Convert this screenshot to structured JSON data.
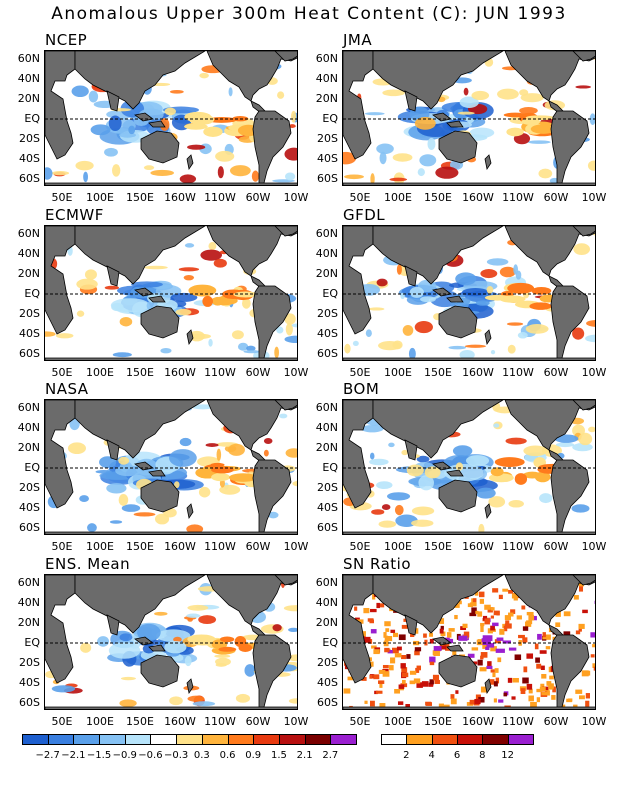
{
  "title": "Anomalous Upper 300m Heat Content (C): JUN 1993",
  "lat_labels": [
    "60N",
    "40N",
    "20N",
    "EQ",
    "20S",
    "40S",
    "60S"
  ],
  "lon_labels": [
    "50E",
    "100E",
    "150E",
    "160W",
    "110W",
    "60W",
    "10W"
  ],
  "panels": [
    {
      "name": "NCEP"
    },
    {
      "name": "JMA"
    },
    {
      "name": "ECMWF"
    },
    {
      "name": "GFDL"
    },
    {
      "name": "NASA"
    },
    {
      "name": "BOM"
    },
    {
      "name": "ENS. Mean"
    },
    {
      "name": "SN Ratio"
    }
  ],
  "colorbar_anomaly": {
    "colors": [
      "#1d5fcf",
      "#3a7fe0",
      "#5aa0ea",
      "#86c2f4",
      "#b7e4fb",
      "#ffffff",
      "#ffe28a",
      "#ffb43c",
      "#ff7a1c",
      "#e83a10",
      "#b81010",
      "#7a0000",
      "#9a1fd0"
    ],
    "labels": [
      "−2.7",
      "−2.1",
      "−1.5",
      "−0.9",
      "−0.6",
      "−0.3",
      "0.3",
      "0.6",
      "0.9",
      "1.5",
      "2.1",
      "2.7"
    ]
  },
  "colorbar_sn": {
    "colors": [
      "#ffffff",
      "#ffa020",
      "#f05010",
      "#c81008",
      "#800000",
      "#9a1fd0"
    ],
    "labels": [
      "2",
      "4",
      "6",
      "8",
      "12"
    ]
  },
  "land_color": "#6b6b6b"
}
